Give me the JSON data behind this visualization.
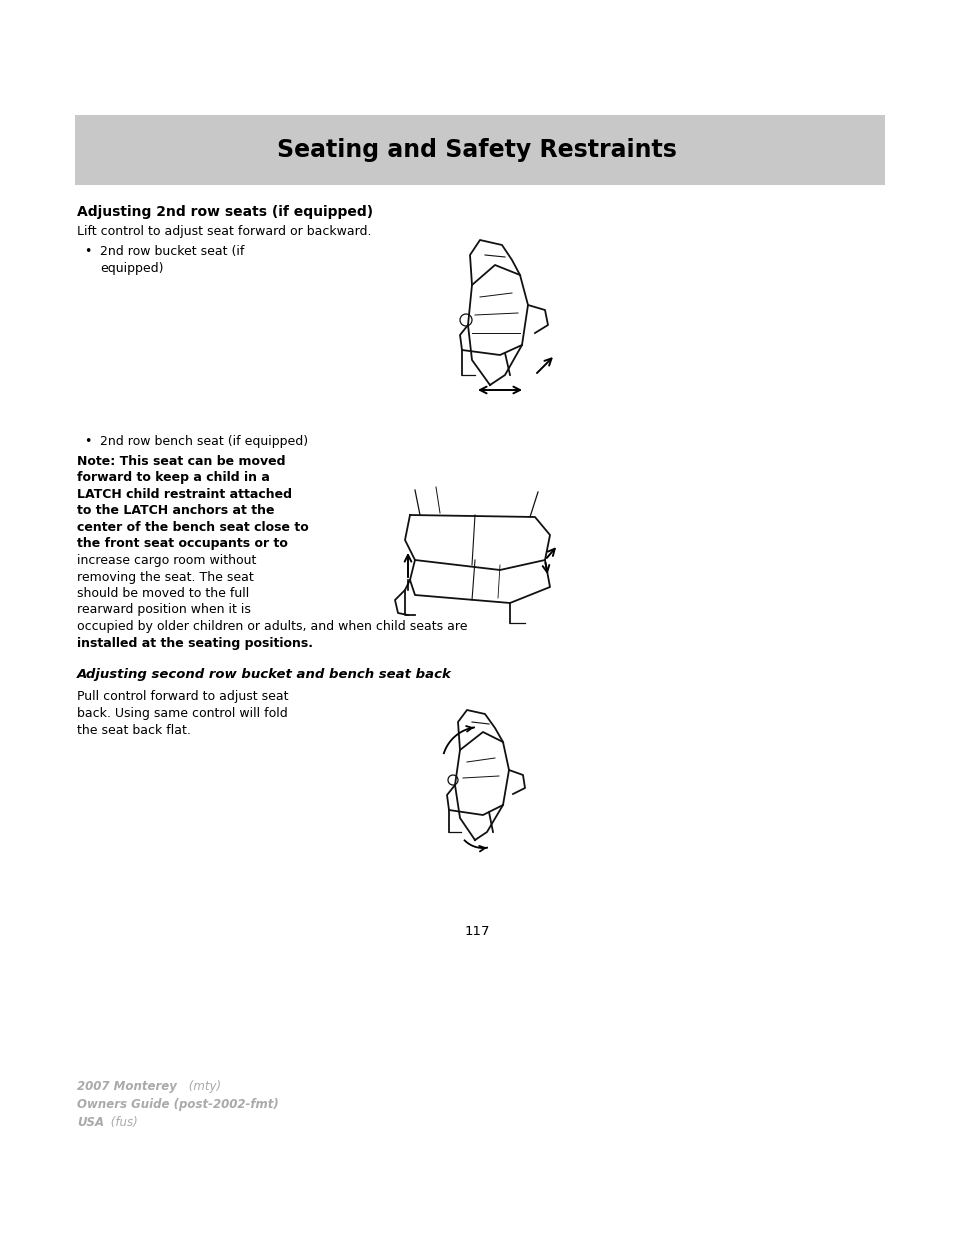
{
  "page_bg": "#ffffff",
  "header_bg": "#c8c8c8",
  "header_text": "Seating and Safety Restraints",
  "section1_title": "Adjusting 2nd row seats (if equipped)",
  "section1_body": "Lift control to adjust seat forward or backward.",
  "bullet1_line1": "2nd row bucket seat (if",
  "bullet1_line2": "    equipped)",
  "bullet2": "2nd row bench seat (if equipped)",
  "note_bold_lines": [
    "Note: This seat can be moved",
    "forward to keep a child in a",
    "LATCH child restraint attached",
    "to the LATCH anchors at the",
    "center of the bench seat close to",
    "the front seat occupants or to"
  ],
  "note_normal_lines": [
    "increase cargo room without",
    "removing the seat. The seat",
    "should be moved to the full",
    "rearward position when it is"
  ],
  "note_full_line1": "occupied by older children or adults, and when child seats are",
  "note_full_line2": "installed at the seating positions.",
  "section2_title": "Adjusting second row bucket and bench seat back",
  "section2_body_line1": "Pull control forward to adjust seat",
  "section2_body_line2": "back. Using same control will fold",
  "section2_body_line3": "the seat back flat.",
  "page_number": "117",
  "footer_line1a": "2007 Monterey",
  "footer_line1b": " (mty)",
  "footer_line2": "Owners Guide (post-2002-fmt)",
  "footer_line3a": "USA",
  "footer_line3b": " (fus)",
  "footer_color": "#aaaaaa",
  "text_color": "#000000",
  "line_color": "#111111"
}
